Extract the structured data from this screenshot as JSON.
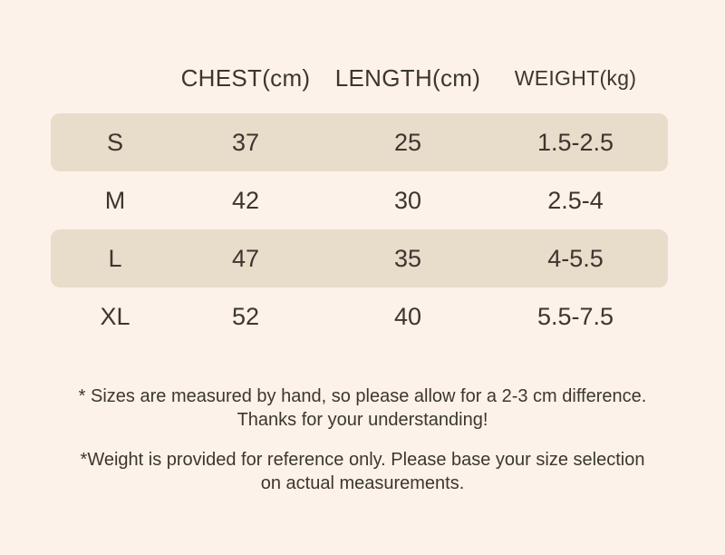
{
  "page": {
    "background_color": "#fcf2ea",
    "highlight_band_color": "#e8dcca",
    "text_color": "#3c362f"
  },
  "table": {
    "headers": [
      "CHEST(cm)",
      "LENGTH(cm)",
      "WEIGHT(kg)"
    ],
    "rows": [
      {
        "size": "S",
        "chest": "37",
        "length": "25",
        "weight": "1.5-2.5",
        "highlighted": true
      },
      {
        "size": "M",
        "chest": "42",
        "length": "30",
        "weight": "2.5-4",
        "highlighted": false
      },
      {
        "size": "L",
        "chest": "47",
        "length": "35",
        "weight": "4-5.5",
        "highlighted": true
      },
      {
        "size": "XL",
        "chest": "52",
        "length": "40",
        "weight": "5.5-7.5",
        "highlighted": false
      }
    ]
  },
  "notes": [
    {
      "lines": [
        "* Sizes are measured by hand, so please allow for a 2-3 cm difference.",
        "Thanks for your understanding!"
      ]
    },
    {
      "lines": [
        "*Weight is provided for reference only. Please base your size selection",
        "on actual measurements."
      ]
    }
  ]
}
